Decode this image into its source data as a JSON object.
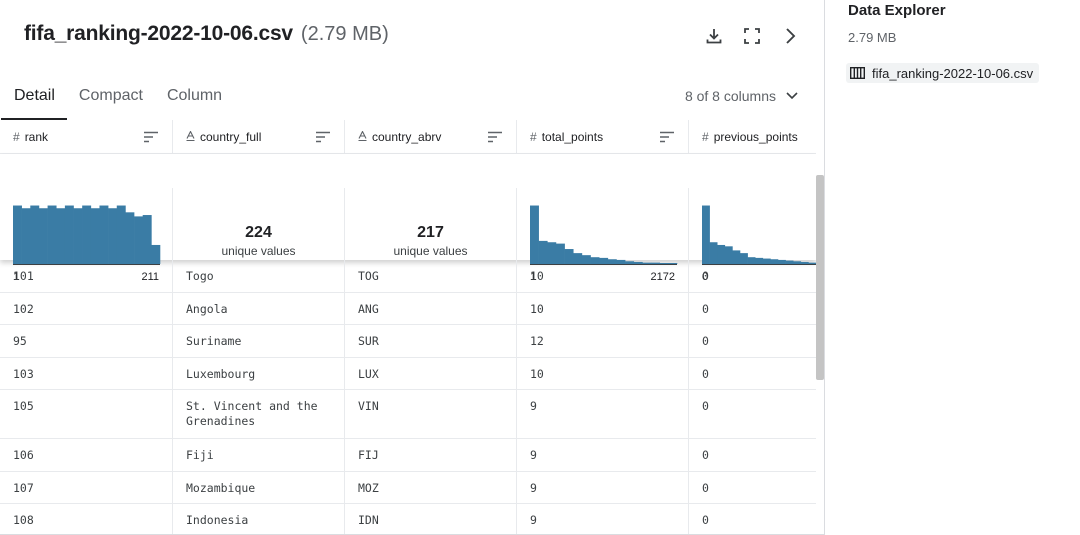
{
  "file": {
    "title": "fifa_ranking-2022-10-06.csv",
    "size": "(2.79 MB)"
  },
  "header_icons": [
    "download-icon",
    "fullscreen-icon",
    "chevron-right-icon"
  ],
  "tabs": [
    {
      "label": "Detail",
      "active": true
    },
    {
      "label": "Compact",
      "active": false
    },
    {
      "label": "Column",
      "active": false
    }
  ],
  "column_count": "8 of 8 columns",
  "columns": [
    {
      "type_icon": "#",
      "name": "rank",
      "summary": {
        "kind": "histogram",
        "min": "1",
        "max": "211",
        "bars": [
          0.86,
          0.82,
          0.86,
          0.82,
          0.86,
          0.82,
          0.86,
          0.82,
          0.86,
          0.82,
          0.86,
          0.82,
          0.86,
          0.76,
          0.7,
          0.72,
          0.28
        ]
      }
    },
    {
      "type_icon": "A",
      "name": "country_full",
      "summary": {
        "kind": "unique",
        "count": "224",
        "label": "unique values"
      }
    },
    {
      "type_icon": "A",
      "name": "country_abrv",
      "summary": {
        "kind": "unique",
        "count": "217",
        "label": "unique values"
      }
    },
    {
      "type_icon": "#",
      "name": "total_points",
      "summary": {
        "kind": "histogram",
        "min": "1",
        "max": "2172",
        "bars": [
          0.86,
          0.34,
          0.32,
          0.3,
          0.22,
          0.16,
          0.13,
          0.1,
          0.09,
          0.07,
          0.06,
          0.04,
          0.03,
          0.02,
          0.02,
          0.01,
          0.01
        ]
      }
    },
    {
      "type_icon": "#",
      "name": "previous_points",
      "summary": {
        "kind": "histogram",
        "min": "0",
        "max": "",
        "bars": [
          0.86,
          0.32,
          0.28,
          0.26,
          0.2,
          0.16,
          0.1,
          0.09,
          0.08,
          0.07,
          0.06,
          0.05,
          0.04,
          0.03,
          0.02
        ]
      }
    }
  ],
  "rows": [
    [
      "101",
      "Togo",
      "TOG",
      "10",
      "0"
    ],
    [
      "102",
      "Angola",
      "ANG",
      "10",
      "0"
    ],
    [
      "95",
      "Suriname",
      "SUR",
      "12",
      "0"
    ],
    [
      "103",
      "Luxembourg",
      "LUX",
      "10",
      "0"
    ],
    [
      "105",
      "St. Vincent and the\nGrenadines",
      "VIN",
      "9",
      "0"
    ],
    [
      "106",
      "Fiji",
      "FIJ",
      "9",
      "0"
    ],
    [
      "107",
      "Mozambique",
      "MOZ",
      "9",
      "0"
    ],
    [
      "108",
      "Indonesia",
      "IDN",
      "9",
      "0"
    ]
  ],
  "explorer": {
    "title": "Data Explorer",
    "size": "2.79 MB",
    "file_name": "fifa_ranking-2022-10-06.csv",
    "file_icon": "table-icon"
  },
  "colors": {
    "histogram_bar": "#3a7ca5",
    "border": "#e8eaed"
  }
}
